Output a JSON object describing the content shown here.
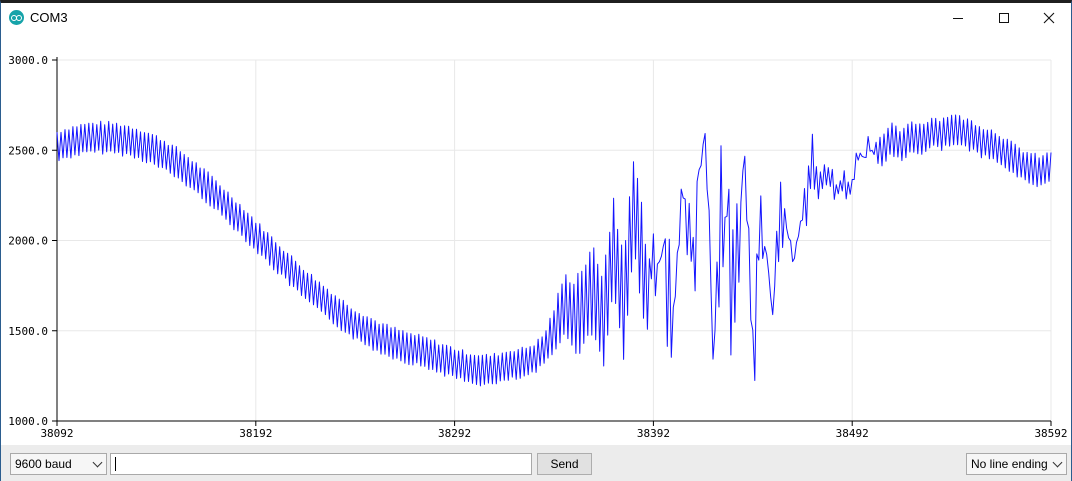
{
  "window": {
    "title": "COM3",
    "icon": "arduino-icon",
    "controls": [
      "minimize-icon",
      "maximize-icon",
      "close-icon"
    ]
  },
  "chart_data": {
    "type": "line",
    "x_ticks": [
      "38092",
      "38192",
      "38292",
      "38392",
      "38492",
      "38592"
    ],
    "y_ticks": [
      "1000.0",
      "1500.0",
      "2000.0",
      "2500.0",
      "3000.0"
    ],
    "xlim": [
      38092,
      38592
    ],
    "ylim": [
      1000,
      3000
    ],
    "grid": true,
    "line_color": "#1414ff",
    "series": [
      {
        "x": [
          38092,
          38097,
          38102,
          38107,
          38112,
          38117,
          38122,
          38127,
          38132,
          38137,
          38142,
          38147,
          38152,
          38157,
          38162,
          38167,
          38172,
          38177,
          38182,
          38187,
          38192,
          38197,
          38202,
          38207,
          38212,
          38217,
          38222,
          38227,
          38232,
          38237,
          38242,
          38247,
          38252,
          38257,
          38262,
          38267,
          38272,
          38277,
          38282,
          38287,
          38292,
          38297,
          38302,
          38307,
          38312,
          38317,
          38322,
          38327,
          38332,
          38337,
          38342,
          38347,
          38352,
          38357,
          38362,
          38367,
          38372,
          38377,
          38382,
          38387,
          38392,
          38397,
          38402,
          38407,
          38412,
          38417,
          38422,
          38427,
          38432,
          38437,
          38442,
          38447,
          38452,
          38457,
          38462,
          38467,
          38472,
          38477,
          38482,
          38487,
          38492,
          38497,
          38502,
          38507,
          38512,
          38517,
          38522,
          38527,
          38532,
          38537,
          38542,
          38547,
          38552,
          38557,
          38562,
          38567,
          38572,
          38577,
          38582,
          38587,
          38592
        ],
        "y": [
          2520,
          2540,
          2555,
          2565,
          2570,
          2570,
          2565,
          2555,
          2540,
          2520,
          2495,
          2465,
          2430,
          2390,
          2345,
          2300,
          2250,
          2195,
          2140,
          2085,
          2025,
          1970,
          1915,
          1860,
          1805,
          1755,
          1705,
          1660,
          1615,
          1575,
          1535,
          1505,
          1475,
          1450,
          1430,
          1410,
          1395,
          1380,
          1360,
          1340,
          1320,
          1300,
          1290,
          1280,
          1285,
          1300,
          1315,
          1320,
          1345,
          1395,
          1500,
          1650,
          1580,
          1640,
          1720,
          1560,
          1980,
          1620,
          2200,
          1900,
          1700,
          2050,
          1450,
          2300,
          1800,
          2700,
          1400,
          2250,
          1700,
          2450,
          1450,
          2150,
          1650,
          2300,
          1900,
          2200,
          2420,
          2300,
          2350,
          2280,
          2350,
          2480,
          2520,
          2500,
          2560,
          2520,
          2580,
          2560,
          2600,
          2590,
          2620,
          2600,
          2580,
          2550,
          2530,
          2500,
          2460,
          2420,
          2400,
          2380,
          2410
        ],
        "amplitude": [
          80,
          80,
          80,
          80,
          80,
          80,
          80,
          80,
          80,
          80,
          80,
          80,
          80,
          80,
          80,
          80,
          80,
          80,
          80,
          80,
          80,
          80,
          80,
          80,
          80,
          80,
          80,
          80,
          80,
          80,
          80,
          80,
          80,
          80,
          80,
          80,
          80,
          80,
          80,
          80,
          80,
          80,
          80,
          80,
          80,
          80,
          80,
          80,
          80,
          80,
          120,
          150,
          200,
          220,
          220,
          240,
          250,
          260,
          270,
          280,
          300,
          310,
          320,
          330,
          340,
          350,
          360,
          360,
          340,
          320,
          300,
          300,
          290,
          280,
          260,
          240,
          150,
          120,
          100,
          100,
          90,
          90,
          80,
          80,
          80,
          80,
          80,
          80,
          80,
          80,
          80,
          80,
          80,
          80,
          80,
          80,
          80,
          80,
          80,
          80,
          80
        ]
      }
    ]
  },
  "bottom": {
    "baud": "9600 baud",
    "input_value": "",
    "send_label": "Send",
    "line_ending": "No line ending"
  }
}
